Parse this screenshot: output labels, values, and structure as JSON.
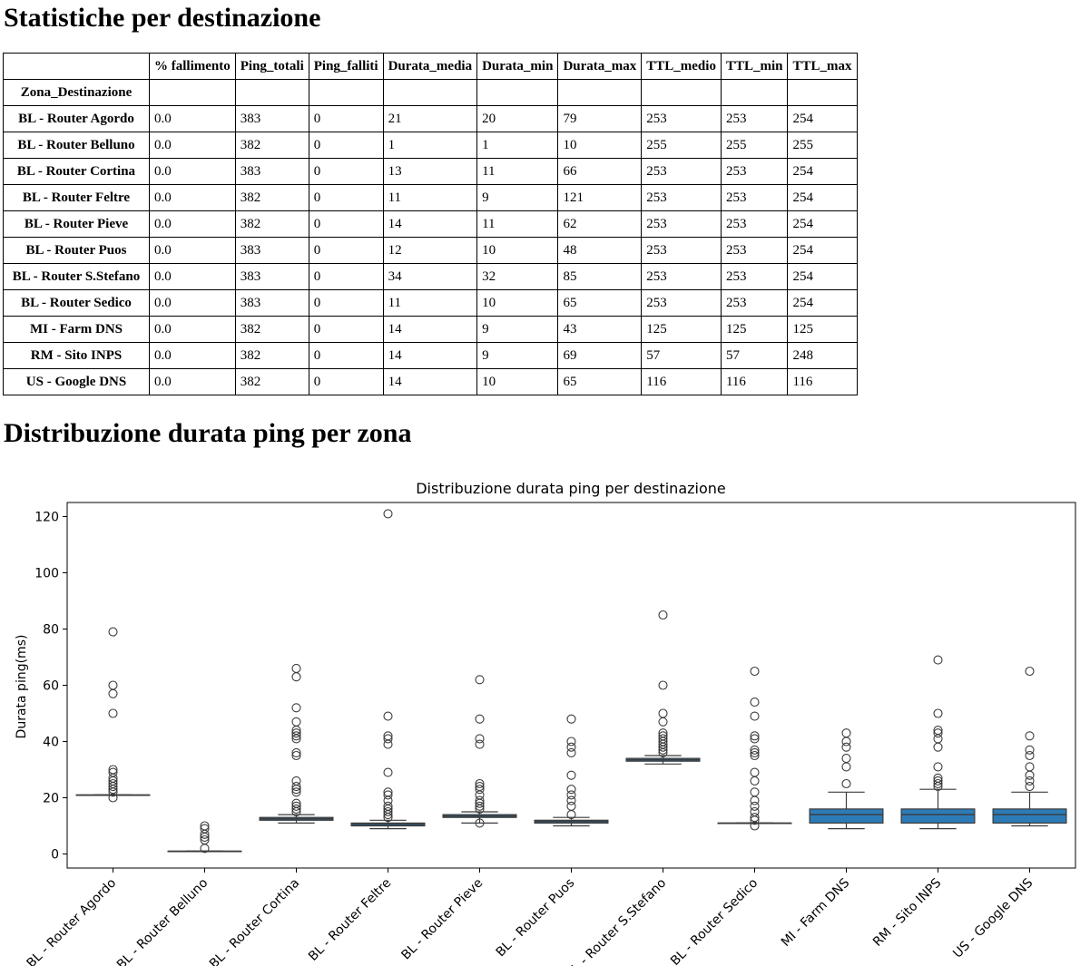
{
  "headings": {
    "stats": "Statistiche per destinazione",
    "distribution": "Distribuzione durata ping per zona"
  },
  "table": {
    "columns": [
      "% fallimento",
      "Ping_totali",
      "Ping_falliti",
      "Durata_media",
      "Durata_min",
      "Durata_max",
      "TTL_medio",
      "TTL_min",
      "TTL_max"
    ],
    "index_name": "Zona_Destinazione",
    "rows": [
      {
        "zone": "BL - Router Agordo",
        "values": [
          "0.0",
          "383",
          "0",
          "21",
          "20",
          "79",
          "253",
          "253",
          "254"
        ]
      },
      {
        "zone": "BL - Router Belluno",
        "values": [
          "0.0",
          "382",
          "0",
          "1",
          "1",
          "10",
          "255",
          "255",
          "255"
        ]
      },
      {
        "zone": "BL - Router Cortina",
        "values": [
          "0.0",
          "383",
          "0",
          "13",
          "11",
          "66",
          "253",
          "253",
          "254"
        ]
      },
      {
        "zone": "BL - Router Feltre",
        "values": [
          "0.0",
          "382",
          "0",
          "11",
          "9",
          "121",
          "253",
          "253",
          "254"
        ]
      },
      {
        "zone": "BL - Router Pieve",
        "values": [
          "0.0",
          "382",
          "0",
          "14",
          "11",
          "62",
          "253",
          "253",
          "254"
        ]
      },
      {
        "zone": "BL - Router Puos",
        "values": [
          "0.0",
          "383",
          "0",
          "12",
          "10",
          "48",
          "253",
          "253",
          "254"
        ]
      },
      {
        "zone": "BL - Router S.Stefano",
        "values": [
          "0.0",
          "383",
          "0",
          "34",
          "32",
          "85",
          "253",
          "253",
          "254"
        ]
      },
      {
        "zone": "BL - Router Sedico",
        "values": [
          "0.0",
          "383",
          "0",
          "11",
          "10",
          "65",
          "253",
          "253",
          "254"
        ]
      },
      {
        "zone": "MI - Farm DNS",
        "values": [
          "0.0",
          "382",
          "0",
          "14",
          "9",
          "43",
          "125",
          "125",
          "125"
        ]
      },
      {
        "zone": "RM - Sito INPS",
        "values": [
          "0.0",
          "382",
          "0",
          "14",
          "9",
          "69",
          "57",
          "57",
          "248"
        ]
      },
      {
        "zone": "US - Google DNS",
        "values": [
          "0.0",
          "382",
          "0",
          "14",
          "10",
          "65",
          "116",
          "116",
          "116"
        ]
      }
    ]
  },
  "chart_data": {
    "type": "box",
    "title": "Distribuzione durata ping per destinazione",
    "xlabel": "",
    "ylabel": "Durata ping(ms)",
    "ylim": [
      -5,
      125
    ],
    "yticks": [
      0,
      20,
      40,
      60,
      80,
      100,
      120
    ],
    "box_color": "#2c7bb6",
    "categories": [
      "BL - Router Agordo",
      "BL - Router Belluno",
      "BL - Router Cortina",
      "BL - Router Feltre",
      "BL - Router Pieve",
      "BL - Router Puos",
      "BL - Router S.Stefano",
      "BL - Router Sedico",
      "MI - Farm DNS",
      "RM - Sito INPS",
      "US - Google DNS"
    ],
    "boxes": [
      {
        "whisker_low": 21,
        "q1": 21,
        "median": 21,
        "q3": 21,
        "whisker_high": 21,
        "outliers": [
          79,
          60,
          57,
          50,
          30,
          29,
          27,
          26,
          25,
          24,
          23,
          22,
          20
        ]
      },
      {
        "whisker_low": 1,
        "q1": 1,
        "median": 1,
        "q3": 1,
        "whisker_high": 1,
        "outliers": [
          10,
          9,
          7,
          6,
          5,
          2
        ]
      },
      {
        "whisker_low": 11,
        "q1": 12,
        "median": 12.5,
        "q3": 13,
        "whisker_high": 14,
        "outliers": [
          66,
          63,
          52,
          47,
          44,
          43,
          42,
          41,
          36,
          35,
          26,
          24,
          23,
          22,
          18,
          17,
          16,
          15
        ]
      },
      {
        "whisker_low": 9,
        "q1": 10,
        "median": 10.5,
        "q3": 11,
        "whisker_high": 12,
        "outliers": [
          121,
          49,
          42,
          41,
          39,
          29,
          22,
          21,
          19,
          17,
          16,
          15,
          14,
          13
        ]
      },
      {
        "whisker_low": 11,
        "q1": 13,
        "median": 13.5,
        "q3": 14,
        "whisker_high": 15,
        "outliers": [
          62,
          48,
          41,
          39,
          25,
          24,
          23,
          21,
          19,
          18,
          17,
          16,
          11
        ]
      },
      {
        "whisker_low": 10,
        "q1": 11,
        "median": 11.5,
        "q3": 12,
        "whisker_high": 13,
        "outliers": [
          48,
          40,
          38,
          36,
          28,
          23,
          21,
          19,
          17,
          14
        ]
      },
      {
        "whisker_low": 32,
        "q1": 33,
        "median": 33.5,
        "q3": 34,
        "whisker_high": 35,
        "outliers": [
          85,
          60,
          50,
          47,
          43,
          42,
          41,
          40,
          39,
          38,
          37,
          36
        ]
      },
      {
        "whisker_low": 11,
        "q1": 11,
        "median": 11,
        "q3": 11,
        "whisker_high": 11,
        "outliers": [
          65,
          54,
          49,
          42,
          41,
          37,
          36,
          35,
          29,
          26,
          22,
          19,
          17,
          15,
          13,
          12,
          10
        ]
      },
      {
        "whisker_low": 9,
        "q1": 11,
        "median": 14,
        "q3": 16,
        "whisker_high": 22,
        "outliers": [
          43,
          40,
          38,
          34,
          31,
          25
        ]
      },
      {
        "whisker_low": 9,
        "q1": 11,
        "median": 14,
        "q3": 16,
        "whisker_high": 23,
        "outliers": [
          69,
          50,
          44,
          43,
          41,
          38,
          31,
          27,
          26,
          25,
          24
        ]
      },
      {
        "whisker_low": 10,
        "q1": 11,
        "median": 14,
        "q3": 16,
        "whisker_high": 22,
        "outliers": [
          65,
          42,
          37,
          35,
          31,
          28,
          26,
          24
        ]
      }
    ]
  }
}
